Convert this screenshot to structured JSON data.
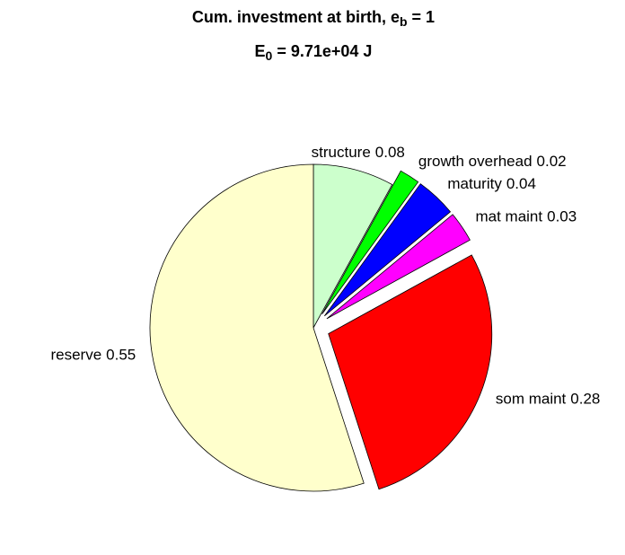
{
  "chart_data": {
    "type": "pie",
    "title": [
      [
        "Cum. investment at birth, e",
        "b",
        " = 1"
      ],
      [
        "E",
        "0",
        " = 9.71e+04 J"
      ]
    ],
    "categories": [
      "structure",
      "growth overhead",
      "maturity",
      "mat maint",
      "som maint",
      "reserve"
    ],
    "values": [
      0.08,
      0.02,
      0.04,
      0.03,
      0.28,
      0.55
    ],
    "colors": [
      "#ccffcc",
      "#00ff00",
      "#0000ff",
      "#ff00ff",
      "#ff0000",
      "#ffffcc"
    ],
    "explode": [
      false,
      true,
      true,
      true,
      true,
      false
    ]
  }
}
